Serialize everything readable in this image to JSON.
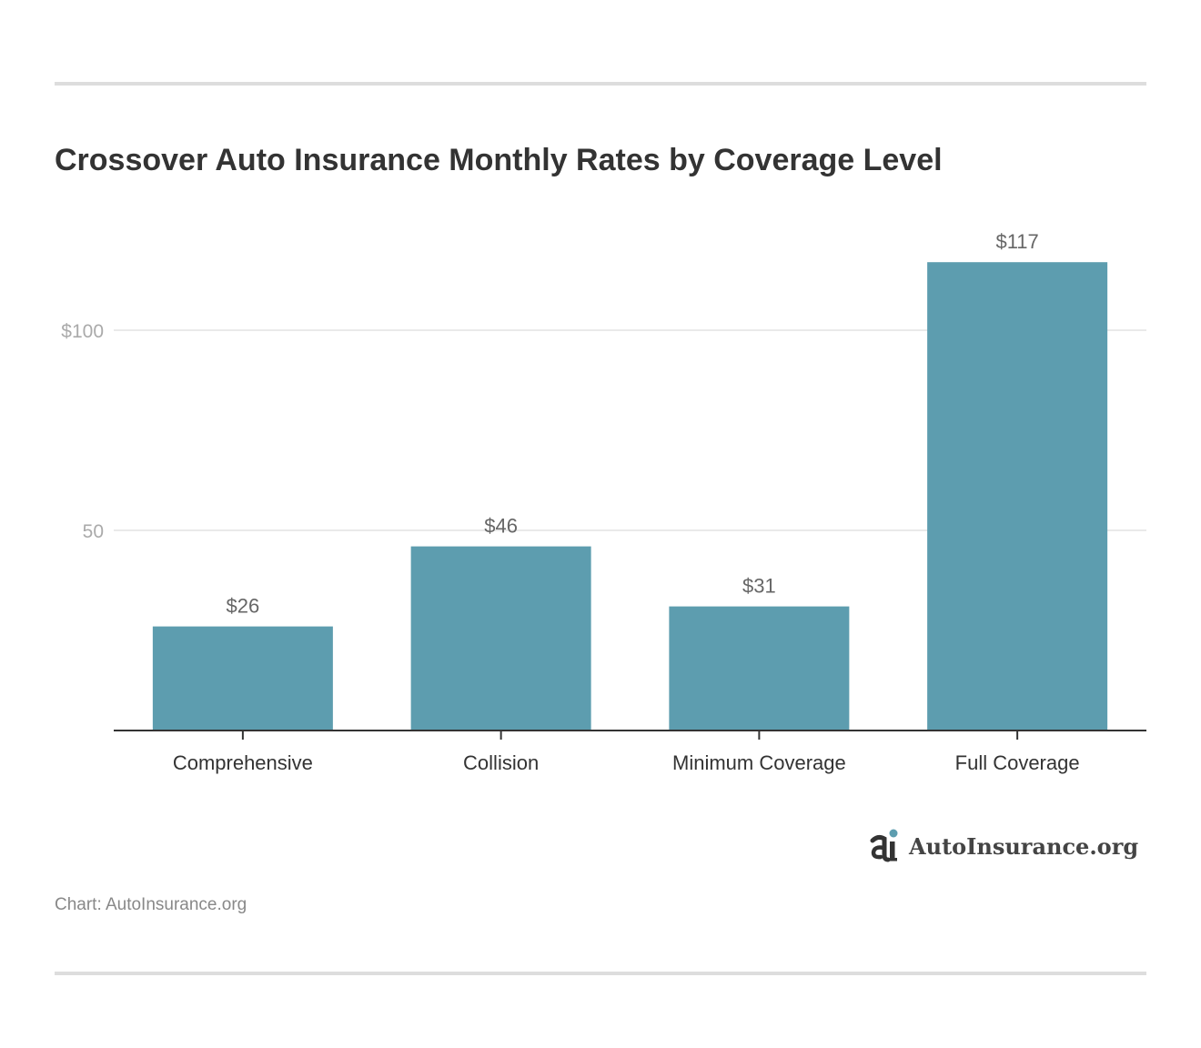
{
  "title": "Crossover Auto Insurance Monthly Rates by Coverage Level",
  "credit": "Chart: AutoInsurance.org",
  "logo": {
    "text": "AutoInsurance.org",
    "icon": "autoinsurance-logo-icon"
  },
  "colors": {
    "bar": "#5d9daf",
    "gridline": "#e3e3e3",
    "axis": "#333333",
    "tick_label": "#aaaaaa",
    "category_label": "#333333",
    "value_label": "#666666",
    "rule": "#dddddd"
  },
  "chart_data": {
    "type": "bar",
    "categories": [
      "Comprehensive",
      "Collision",
      "Minimum Coverage",
      "Full Coverage"
    ],
    "values": [
      26,
      46,
      31,
      117
    ],
    "value_labels": [
      "$26",
      "$46",
      "$31",
      "$117"
    ],
    "title": "Crossover Auto Insurance Monthly Rates by Coverage Level",
    "xlabel": "",
    "ylabel": "",
    "ylim": [
      0,
      117
    ],
    "yticks": [
      50,
      100
    ],
    "ytick_labels": [
      "50",
      "$100"
    ],
    "grid": true,
    "legend": "none"
  }
}
